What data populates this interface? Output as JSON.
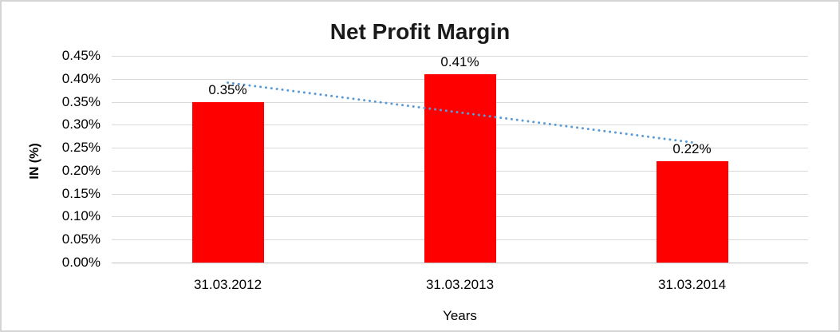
{
  "chart_data": {
    "type": "bar",
    "title": "Net Profit Margin",
    "xlabel": "Years",
    "ylabel": "IN (%)",
    "categories": [
      "31.03.2012",
      "31.03.2013",
      "31.03.2014"
    ],
    "values": [
      0.35,
      0.41,
      0.22
    ],
    "data_labels": [
      "0.35%",
      "0.41%",
      "0.22%"
    ],
    "unit": "%",
    "ylim": [
      0,
      0.45
    ],
    "ytick_step": 0.05,
    "ytick_labels_top_to_bottom": [
      "0.45%",
      "0.40%",
      "0.35%",
      "0.30%",
      "0.25%",
      "0.20%",
      "0.15%",
      "0.10%",
      "0.05%",
      "0.00%"
    ],
    "grid": true,
    "legend": "none",
    "bar_color": "#ff0000",
    "gridline_color": "#d9d9d9",
    "trendline": {
      "type": "linear",
      "style": "dotted",
      "color": "#5b9bd5",
      "start_value": 0.3917,
      "end_value": 0.2617
    }
  }
}
